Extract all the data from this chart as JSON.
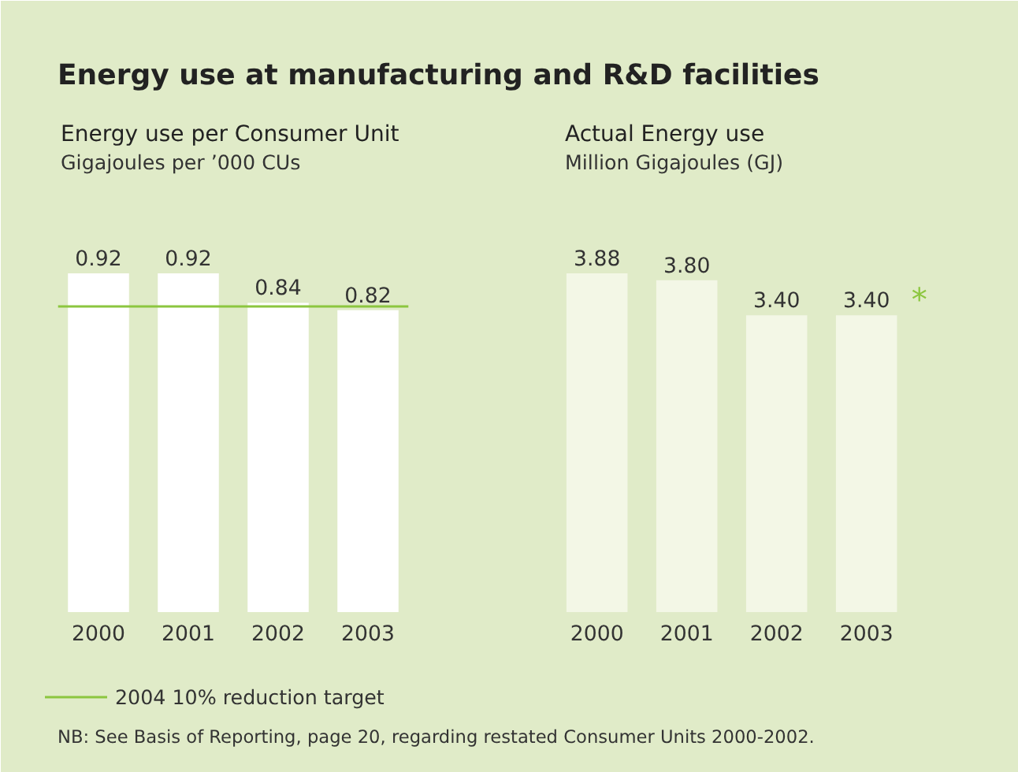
{
  "chart_data": [
    {
      "type": "bar",
      "title": "Energy use per Consumer Unit",
      "subtitle": "Gigajoules per ’000 CUs",
      "categories": [
        "2000",
        "2001",
        "2002",
        "2003"
      ],
      "values": [
        0.92,
        0.92,
        0.84,
        0.82
      ],
      "color": "#ffffff",
      "data_labels": true,
      "tick_labels": "x",
      "legend": "bottom",
      "ref_lines": [
        {
          "axis": "y",
          "value": 0.83,
          "label": "2004 10% reduction target",
          "color": "#8cc63f"
        }
      ],
      "annotations": [
        "Energy use at manufacturing and R&D facilities"
      ]
    },
    {
      "type": "bar",
      "title": "Actual Energy use",
      "subtitle": "Million Gigajoules (GJ)",
      "categories": [
        "2000",
        "2001",
        "2002",
        "2003"
      ],
      "values": [
        3.88,
        3.8,
        3.4,
        3.4
      ],
      "color": "#f3f7e6",
      "value_labels": [
        "3.88",
        "3.80",
        "3.40",
        "3.40"
      ],
      "tick_labels": "x",
      "annotations": [
        "*",
        "NB: See Basis of Reporting, page 20, regarding restated Consumer Units 2000-2002."
      ]
    }
  ]
}
